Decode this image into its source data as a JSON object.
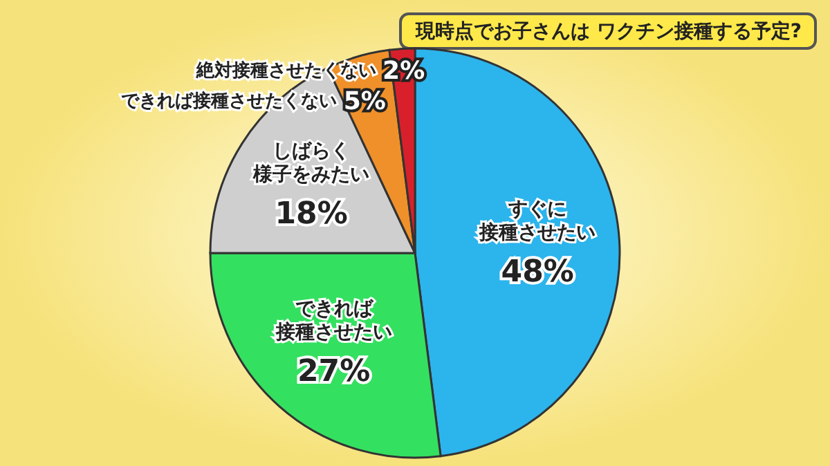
{
  "chart_data": {
    "type": "pie",
    "title": "現時点でお子さんは ワクチン接種する予定?",
    "categories": [
      "すぐに接種させたい",
      "できれば接種させたい",
      "しばらく様子をみたい",
      "できれば接種させたくない",
      "絶対接種させたくない"
    ],
    "values": [
      48,
      27,
      18,
      5,
      2
    ],
    "colors": [
      "#2cb4ec",
      "#34e060",
      "#cfcfcf",
      "#f0902a",
      "#d8202c"
    ],
    "value_labels": [
      "48%",
      "27%",
      "18%",
      "5%",
      "2%"
    ]
  }
}
